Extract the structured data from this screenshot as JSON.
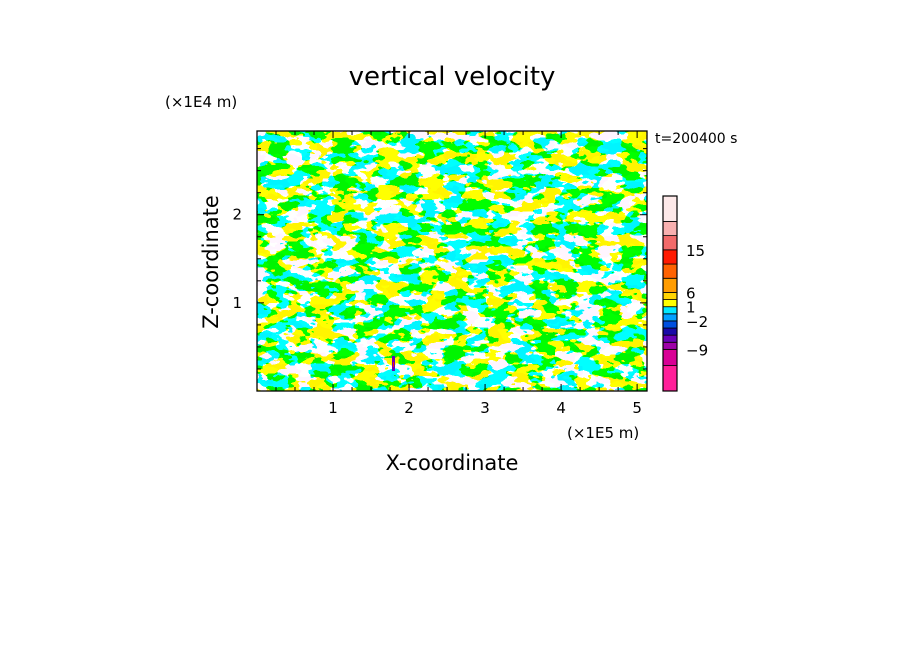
{
  "chart_data": {
    "type": "heatmap",
    "title": "vertical velocity",
    "xlabel": "X-coordinate",
    "ylabel": "Z-coordinate",
    "x_unit": "(×1E5 m)",
    "y_unit": "(×1E4 m)",
    "time_label": "t=200400 s",
    "xlim": [
      0,
      5.13
    ],
    "ylim": [
      0,
      2.95
    ],
    "x_ticks": [
      "1",
      "2",
      "3",
      "4",
      "5"
    ],
    "y_ticks": [
      "1",
      "2"
    ],
    "colorbar": {
      "labels": [
        "15",
        "6",
        "1",
        "−2",
        "−9"
      ],
      "bands": [
        {
          "color": "#ff1f99"
        },
        {
          "color": "#d80095"
        },
        {
          "color": "#9e00a8"
        },
        {
          "color": "#6a00b8"
        },
        {
          "color": "#1a0aa8"
        },
        {
          "color": "#0050e0"
        },
        {
          "color": "#00a0ff"
        },
        {
          "color": "#00e8ff"
        },
        {
          "color": "#ffff00"
        },
        {
          "color": "#ffd400"
        },
        {
          "color": "#ff9c00"
        },
        {
          "color": "#ff6200"
        },
        {
          "color": "#ff1a00"
        },
        {
          "color": "#f26a6a"
        },
        {
          "color": "#f8b0b0"
        },
        {
          "color": "#fde9e9"
        }
      ]
    },
    "field_colors": {
      "positive": "#ffff00",
      "negative": "#00e8ff",
      "extreme_negative": "#6a00b8",
      "extreme_positive": "#ff1a00"
    }
  }
}
